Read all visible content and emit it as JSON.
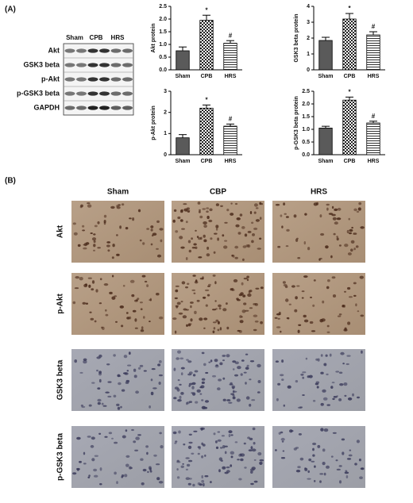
{
  "panel_a_label": "(A)",
  "blot": {
    "columns": [
      "Sham",
      "CPB",
      "HRS"
    ],
    "rows": [
      "Akt",
      "GSK3 beta",
      "p-Akt",
      "p-GSK3 beta",
      "GAPDH"
    ]
  },
  "chart_data": [
    {
      "type": "bar",
      "ylabel": "Akt protein",
      "categories": [
        "Sham",
        "CPB",
        "HRS"
      ],
      "values": [
        0.75,
        1.95,
        1.05
      ],
      "errors": [
        0.15,
        0.2,
        0.1
      ],
      "markers": [
        null,
        "*",
        "#"
      ],
      "ylim": [
        0,
        2.5
      ],
      "yticks": [
        {
          "value": 0,
          "label": "0.0"
        },
        0.5,
        {
          "value": 1,
          "label": "1.0"
        },
        1.5,
        {
          "value": 2,
          "label": "2.0"
        },
        2.5
      ]
    },
    {
      "type": "bar",
      "ylabel": "GSK3 beta protein",
      "categories": [
        "Sham",
        "CPB",
        "HRS"
      ],
      "values": [
        1.85,
        3.2,
        2.2
      ],
      "errors": [
        0.2,
        0.35,
        0.2
      ],
      "markers": [
        null,
        "*",
        "#"
      ],
      "ylim": [
        0,
        4
      ],
      "yticks": [
        0,
        1,
        2,
        3,
        4
      ]
    },
    {
      "type": "bar",
      "ylabel": "p-Akt protein",
      "categories": [
        "Sham",
        "CPB",
        "HRS"
      ],
      "values": [
        0.8,
        2.2,
        1.35
      ],
      "errors": [
        0.15,
        0.15,
        0.1
      ],
      "markers": [
        null,
        "*",
        "#"
      ],
      "ylim": [
        0,
        3
      ],
      "yticks": [
        0,
        1,
        2,
        3
      ]
    },
    {
      "type": "bar",
      "ylabel": "p-GSK3 beta protein",
      "categories": [
        "Sham",
        "CPB",
        "HRS"
      ],
      "values": [
        1.05,
        2.15,
        1.25
      ],
      "errors": [
        0.07,
        0.12,
        0.07
      ],
      "markers": [
        null,
        "*",
        "#"
      ],
      "ylim": [
        0,
        2.5
      ],
      "yticks": [
        {
          "value": 0,
          "label": "0.0"
        },
        0.5,
        {
          "value": 1,
          "label": "1.0"
        },
        1.5,
        {
          "value": 2,
          "label": "2.0"
        },
        2.5
      ]
    }
  ],
  "panel_b_label": "(B)",
  "micrographs": {
    "columns": [
      "Sham",
      "CBP",
      "HRS"
    ],
    "rows": [
      "Akt",
      "p-Akt",
      "GSK3 beta",
      "p-GSK3 beta"
    ]
  }
}
